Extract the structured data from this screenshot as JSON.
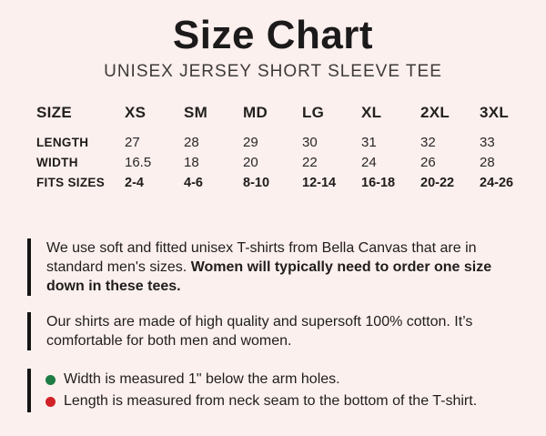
{
  "header": {
    "title": "Size Chart",
    "subtitle": "UNISEX JERSEY SHORT SLEEVE TEE"
  },
  "size_table": {
    "columns": [
      "SIZE",
      "XS",
      "SM",
      "MD",
      "LG",
      "XL",
      "2XL",
      "3XL"
    ],
    "rows": [
      {
        "label": "LENGTH",
        "values": [
          "27",
          "28",
          "29",
          "30",
          "31",
          "32",
          "33"
        ]
      },
      {
        "label": "WIDTH",
        "values": [
          "16.5",
          "18",
          "20",
          "22",
          "24",
          "26",
          "28"
        ]
      },
      {
        "label": "FITS SIZES",
        "values": [
          "2-4",
          "4-6",
          "8-10",
          "12-14",
          "16-18",
          "20-22",
          "24-26"
        ]
      }
    ]
  },
  "notes": [
    {
      "regular": "We use soft and fitted unisex T-shirts from Bella Canvas that are in standard men's sizes. ",
      "bold": "Women will typically need to order one size down in these tees."
    },
    {
      "regular": "Our shirts are made of high quality and supersoft 100% cotton. It’s comfortable for both men and women.",
      "bold": ""
    }
  ],
  "measurement_notes": [
    {
      "icon": "green-dot",
      "color": "#1e7b44",
      "text": "Width is measured 1\" below the arm holes."
    },
    {
      "icon": "red-dot",
      "color": "#d02127",
      "text": "Length is measured from neck seam to the bottom of the T-shirt."
    }
  ],
  "colors": {
    "background": "#fbf0ee",
    "title_text": "#1c1a1a",
    "subtitle_text": "#3e3a3a",
    "body_text": "#211d1d",
    "accent_bar": "#141414",
    "green_bullet": "#1e7b44",
    "red_bullet": "#d02127"
  }
}
